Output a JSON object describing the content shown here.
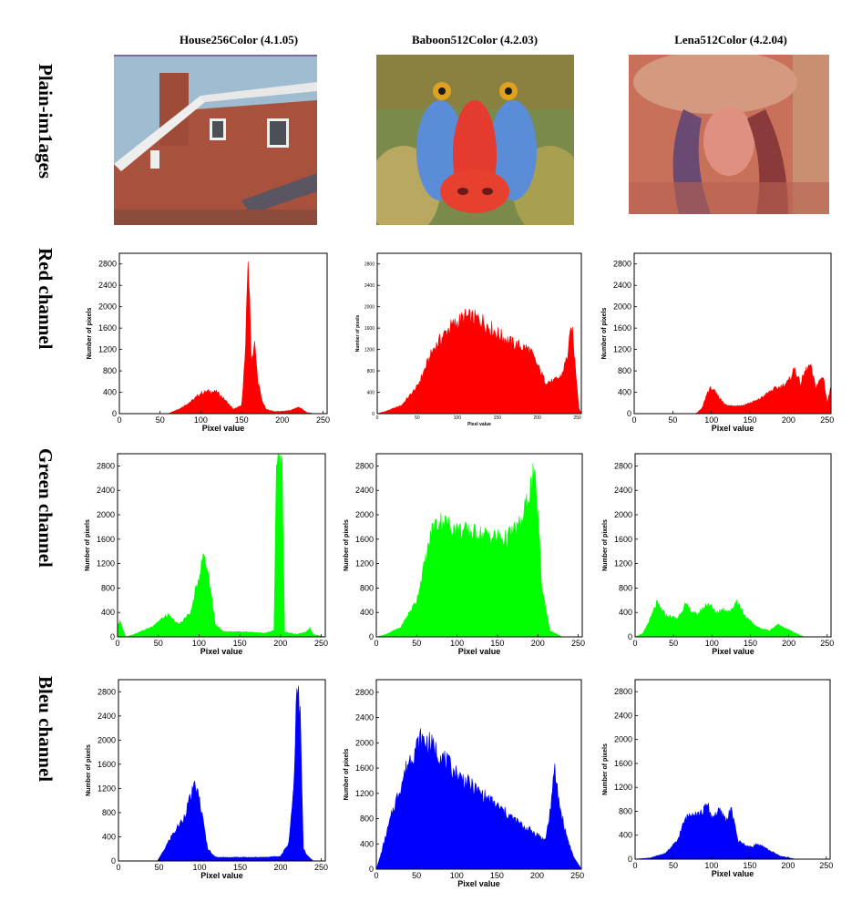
{
  "columns": [
    {
      "title": "House256Color (4.1.05)"
    },
    {
      "title": "Baboon512Color (4.2.03)"
    },
    {
      "title": "Lena512Color (4.2.04)"
    }
  ],
  "rows": [
    {
      "label": "Plain-im1ages"
    },
    {
      "label": "Red channel"
    },
    {
      "label": "Green channel"
    },
    {
      "label": "Bleu channel"
    }
  ],
  "colors": {
    "red": "#ff0000",
    "green": "#00ff00",
    "blue": "#0000ff"
  },
  "chart_data": [
    {
      "type": "area",
      "image": "House256Color (4.1.05)",
      "channel": "red",
      "color": "#ff0000",
      "xlabel": "Pixel value",
      "ylabel": "Number of pixels",
      "xlim": [
        0,
        255
      ],
      "ylim": [
        0,
        3000
      ],
      "xticks": [
        0,
        50,
        100,
        150,
        200,
        250
      ],
      "yticks": [
        0,
        400,
        800,
        1200,
        1600,
        2000,
        2400,
        2800
      ],
      "x": [
        0,
        60,
        75,
        90,
        100,
        110,
        120,
        130,
        140,
        150,
        155,
        158,
        162,
        166,
        170,
        175,
        180,
        190,
        200,
        210,
        220,
        225,
        230,
        240,
        255
      ],
      "y": [
        0,
        0,
        100,
        250,
        380,
        420,
        400,
        250,
        80,
        150,
        1200,
        3000,
        1000,
        1300,
        600,
        250,
        80,
        40,
        40,
        60,
        120,
        80,
        20,
        0,
        0
      ]
    },
    {
      "type": "area",
      "image": "Baboon512Color (4.2.03)",
      "channel": "red",
      "color": "#ff0000",
      "xlabel": "Pixel value",
      "ylabel": "Number of pixels",
      "xlim": [
        0,
        255
      ],
      "ylim": [
        0,
        3000
      ],
      "xticks": [
        0,
        50,
        100,
        150,
        200,
        250
      ],
      "yticks": [
        0,
        400,
        800,
        1200,
        1600,
        2000,
        2400,
        2800
      ],
      "x": [
        0,
        10,
        30,
        50,
        70,
        90,
        110,
        130,
        150,
        170,
        190,
        200,
        210,
        220,
        230,
        238,
        243,
        248,
        252,
        255
      ],
      "y": [
        0,
        40,
        150,
        500,
        1200,
        1600,
        1800,
        1750,
        1500,
        1300,
        1200,
        900,
        600,
        600,
        700,
        1100,
        1650,
        800,
        100,
        0
      ]
    },
    {
      "type": "area",
      "image": "Lena512Color (4.2.04)",
      "channel": "red",
      "color": "#ff0000",
      "xlabel": "Pixel value",
      "ylabel": "Number of pixels",
      "xlim": [
        0,
        255
      ],
      "ylim": [
        0,
        3000
      ],
      "xticks": [
        0,
        50,
        100,
        150,
        200,
        250
      ],
      "yticks": [
        0,
        400,
        800,
        1200,
        1600,
        2000,
        2400,
        2800
      ],
      "x": [
        0,
        80,
        88,
        95,
        100,
        110,
        120,
        140,
        160,
        170,
        180,
        190,
        200,
        208,
        215,
        222,
        228,
        235,
        240,
        245,
        250,
        255
      ],
      "y": [
        0,
        0,
        100,
        400,
        480,
        300,
        150,
        150,
        250,
        350,
        450,
        500,
        600,
        850,
        550,
        800,
        900,
        500,
        600,
        700,
        200,
        500
      ]
    },
    {
      "type": "area",
      "image": "House256Color (4.1.05)",
      "channel": "green",
      "color": "#00ff00",
      "xlabel": "Pixel value",
      "ylabel": "Number of pixels",
      "xlim": [
        0,
        255
      ],
      "ylim": [
        0,
        3000
      ],
      "xticks": [
        0,
        50,
        100,
        150,
        200,
        250
      ],
      "yticks": [
        0,
        400,
        800,
        1200,
        1600,
        2000,
        2400,
        2800
      ],
      "x": [
        0,
        3,
        10,
        20,
        40,
        55,
        62,
        75,
        90,
        100,
        106,
        112,
        120,
        130,
        160,
        180,
        192,
        195,
        198,
        202,
        205,
        220,
        232,
        236,
        240,
        255
      ],
      "y": [
        200,
        250,
        0,
        40,
        150,
        300,
        350,
        200,
        400,
        1000,
        1350,
        1000,
        200,
        80,
        80,
        60,
        100,
        2900,
        3000,
        2900,
        80,
        40,
        80,
        150,
        40,
        0
      ]
    },
    {
      "type": "area",
      "image": "Baboon512Color (4.2.03)",
      "channel": "green",
      "color": "#00ff00",
      "xlabel": "Pixel value",
      "ylabel": "Number of pixels",
      "xlim": [
        0,
        255
      ],
      "ylim": [
        0,
        3000
      ],
      "xticks": [
        0,
        50,
        100,
        150,
        200,
        250
      ],
      "yticks": [
        0,
        400,
        800,
        1200,
        1600,
        2000,
        2400,
        2800
      ],
      "x": [
        0,
        10,
        30,
        50,
        60,
        70,
        80,
        100,
        120,
        140,
        160,
        180,
        190,
        195,
        200,
        205,
        215,
        230,
        255
      ],
      "y": [
        0,
        30,
        150,
        600,
        1200,
        1800,
        1900,
        1750,
        1700,
        1650,
        1600,
        1850,
        2400,
        2650,
        2000,
        800,
        100,
        0,
        0
      ]
    },
    {
      "type": "area",
      "image": "Lena512Color (4.2.04)",
      "channel": "green",
      "color": "#00ff00",
      "xlabel": "Pixel value",
      "ylabel": "Number of pixels",
      "xlim": [
        0,
        255
      ],
      "ylim": [
        0,
        3000
      ],
      "xticks": [
        0,
        50,
        100,
        150,
        200,
        250
      ],
      "yticks": [
        0,
        400,
        800,
        1200,
        1600,
        2000,
        2400,
        2800
      ],
      "x": [
        0,
        10,
        20,
        28,
        40,
        55,
        65,
        80,
        95,
        105,
        115,
        125,
        132,
        145,
        160,
        175,
        185,
        195,
        210,
        220,
        255
      ],
      "y": [
        0,
        50,
        300,
        550,
        350,
        300,
        520,
        350,
        550,
        400,
        450,
        420,
        600,
        300,
        150,
        100,
        200,
        150,
        50,
        0,
        0
      ]
    },
    {
      "type": "area",
      "image": "House256Color (4.1.05)",
      "channel": "blue",
      "color": "#0000ff",
      "xlabel": "Pixel value",
      "ylabel": "Number of pixels",
      "xlim": [
        0,
        255
      ],
      "ylim": [
        0,
        3000
      ],
      "xticks": [
        0,
        50,
        100,
        150,
        200,
        250
      ],
      "yticks": [
        0,
        400,
        800,
        1200,
        1600,
        2000,
        2400,
        2800
      ],
      "x": [
        0,
        48,
        55,
        65,
        80,
        90,
        95,
        100,
        110,
        120,
        140,
        180,
        200,
        210,
        216,
        220,
        224,
        228,
        232,
        240,
        255
      ],
      "y": [
        0,
        0,
        150,
        400,
        700,
        1100,
        1250,
        1000,
        200,
        60,
        60,
        60,
        80,
        300,
        1200,
        3000,
        2400,
        200,
        100,
        0,
        0
      ]
    },
    {
      "type": "area",
      "image": "Baboon512Color (4.2.03)",
      "channel": "blue",
      "color": "#0000ff",
      "xlabel": "Pixel value",
      "ylabel": "Number of pixels",
      "xlim": [
        0,
        255
      ],
      "ylim": [
        0,
        3000
      ],
      "xticks": [
        0,
        50,
        100,
        150,
        200,
        250
      ],
      "yticks": [
        0,
        400,
        800,
        1200,
        1600,
        2000,
        2400,
        2800
      ],
      "x": [
        0,
        5,
        20,
        40,
        55,
        65,
        80,
        100,
        120,
        140,
        160,
        180,
        200,
        210,
        215,
        222,
        228,
        235,
        245,
        255
      ],
      "y": [
        0,
        200,
        900,
        1700,
        2050,
        2000,
        1800,
        1500,
        1300,
        1100,
        900,
        700,
        550,
        450,
        800,
        1550,
        1000,
        600,
        200,
        0
      ]
    },
    {
      "type": "area",
      "image": "Lena512Color (4.2.04)",
      "channel": "blue",
      "color": "#0000ff",
      "xlabel": "Pixel value",
      "ylabel": "Number of pixels",
      "xlim": [
        0,
        255
      ],
      "ylim": [
        0,
        3000
      ],
      "xticks": [
        0,
        50,
        100,
        150,
        200,
        250
      ],
      "yticks": [
        0,
        400,
        800,
        1200,
        1600,
        2000,
        2400,
        2800
      ],
      "x": [
        0,
        20,
        40,
        55,
        65,
        75,
        85,
        95,
        100,
        110,
        120,
        125,
        135,
        150,
        160,
        175,
        190,
        210,
        255
      ],
      "y": [
        0,
        20,
        100,
        300,
        650,
        800,
        750,
        900,
        700,
        800,
        650,
        850,
        300,
        200,
        250,
        150,
        50,
        0,
        0
      ]
    }
  ]
}
